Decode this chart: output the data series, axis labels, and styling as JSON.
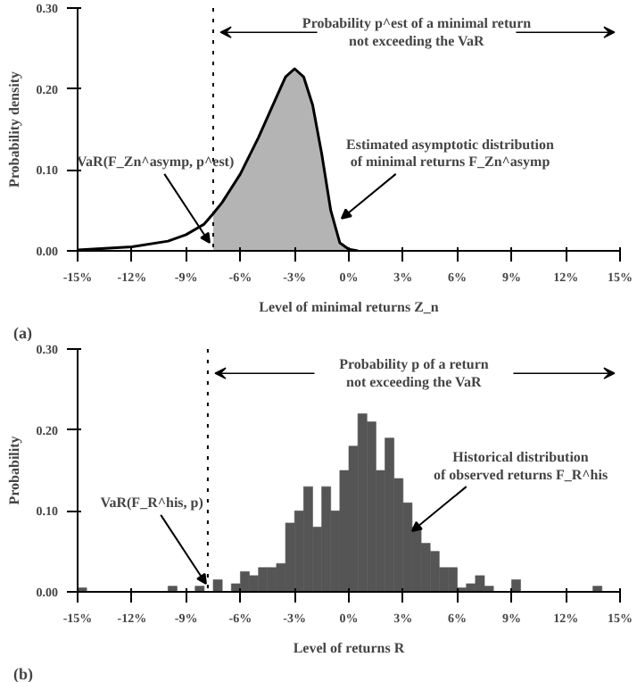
{
  "chart_data": [
    {
      "type": "line",
      "xlabel": "Level of minimal returns Z_n",
      "ylabel": "Probability density",
      "series": [
        {
          "type": "line",
          "color": "#000000",
          "x": [
            -15,
            -12,
            -10,
            -9,
            -8,
            -7.5,
            -7,
            -6,
            -5,
            -4,
            -3.5,
            -3,
            -2.5,
            -2,
            -1.5,
            -1,
            -0.5,
            0,
            0.5
          ],
          "values": [
            0.001,
            0.005,
            0.012,
            0.02,
            0.033,
            0.046,
            0.06,
            0.095,
            0.14,
            0.19,
            0.215,
            0.225,
            0.215,
            0.18,
            0.12,
            0.05,
            0.01,
            0.002,
            0
          ]
        },
        {
          "type": "area",
          "color": "#b4b4b4",
          "x": [
            -7.5,
            -7,
            -6,
            -5,
            -4,
            -3.5,
            -3,
            -2.5,
            -2,
            -1.5,
            -1,
            -0.5,
            0
          ],
          "values": [
            0.046,
            0.06,
            0.095,
            0.14,
            0.19,
            0.215,
            0.225,
            0.215,
            0.18,
            0.12,
            0.05,
            0.01,
            0.002
          ]
        }
      ],
      "xlim": [
        -15,
        15
      ],
      "ylim": [
        0,
        0.3
      ],
      "xticks": [
        {
          "value": -15,
          "label": "-15%"
        },
        {
          "value": -12,
          "label": "-12%"
        },
        {
          "value": -9,
          "label": "-9%"
        },
        {
          "value": -6,
          "label": "-6%"
        },
        {
          "value": -3,
          "label": "-3%"
        },
        {
          "value": 0,
          "label": "0%"
        },
        {
          "value": 3,
          "label": "3%"
        },
        {
          "value": 6,
          "label": "6%"
        },
        {
          "value": 9,
          "label": "9%"
        },
        {
          "value": 12,
          "label": "12%"
        },
        {
          "value": 15,
          "label": "15%"
        }
      ],
      "yticks": [
        {
          "value": 0,
          "label": "0.00"
        },
        {
          "value": 0.1,
          "label": "0.10"
        },
        {
          "value": 0.2,
          "label": "0.20"
        },
        {
          "value": 0.3,
          "label": "0.30"
        }
      ],
      "ref_lines": [
        {
          "axis": "x",
          "value": -7.5,
          "line_style": "dotted",
          "color": "#000000"
        }
      ],
      "annotations": [
        "(a)",
        "Probability p^est of a minimal return\nnot exceeding the VaR",
        {
          "text": "VaR(F_Zn^asymp, p^est)",
          "x": -7.7,
          "y": 0.01
        },
        {
          "text": "Estimated asymptotic distribution\nof minimal returns F_Zn^asymp",
          "x": -0.4,
          "y": 0.04
        }
      ],
      "grid": false
    },
    {
      "type": "histogram",
      "xlabel": "Level of returns R",
      "ylabel": "Probability",
      "color": "#555555",
      "bins": [
        -15,
        -14.5,
        -14,
        -13.5,
        -13,
        -12.5,
        -12,
        -11.5,
        -11,
        -10.5,
        -10,
        -9.5,
        -9,
        -8.5,
        -8,
        -7.5,
        -7,
        -6.5,
        -6,
        -5.5,
        -5,
        -4.5,
        -4,
        -3.5,
        -3,
        -2.5,
        -2,
        -1.5,
        -1,
        -0.5,
        0,
        0.5,
        1,
        1.5,
        2,
        2.5,
        3,
        3.5,
        4,
        4.5,
        5,
        5.5,
        6,
        6.5,
        7,
        7.5,
        8,
        8.5,
        9,
        9.5,
        10,
        10.5,
        11,
        11.5,
        12,
        12.5,
        13,
        13.5,
        14,
        14.5,
        15
      ],
      "values": [
        0.005,
        0,
        0,
        0,
        0,
        0,
        0,
        0,
        0,
        0,
        0.007,
        0,
        0,
        0.007,
        0,
        0.015,
        0,
        0.01,
        0.025,
        0.02,
        0.03,
        0.03,
        0.035,
        0.085,
        0.1,
        0.13,
        0.08,
        0.13,
        0.1,
        0.15,
        0.18,
        0.22,
        0.21,
        0.15,
        0.19,
        0.14,
        0.11,
        0.08,
        0.06,
        0.05,
        0.03,
        0.03,
        0.005,
        0.01,
        0.02,
        0.007,
        0,
        0,
        0.015,
        0,
        0,
        0,
        0,
        0,
        0,
        0,
        0,
        0.007,
        0,
        0
      ],
      "xlim": [
        -15,
        15
      ],
      "ylim": [
        0,
        0.3
      ],
      "xticks": [
        {
          "value": -15,
          "label": "-15%"
        },
        {
          "value": -12,
          "label": "-12%"
        },
        {
          "value": -9,
          "label": "-9%"
        },
        {
          "value": -6,
          "label": "-6%"
        },
        {
          "value": -3,
          "label": "-3%"
        },
        {
          "value": 0,
          "label": "0%"
        },
        {
          "value": 3,
          "label": "3%"
        },
        {
          "value": 6,
          "label": "6%"
        },
        {
          "value": 9,
          "label": "9%"
        },
        {
          "value": 12,
          "label": "12%"
        },
        {
          "value": 15,
          "label": "15%"
        }
      ],
      "yticks": [
        {
          "value": 0,
          "label": "0.00"
        },
        {
          "value": 0.1,
          "label": "0.10"
        },
        {
          "value": 0.2,
          "label": "0.20"
        },
        {
          "value": 0.3,
          "label": "0.30"
        }
      ],
      "ref_lines": [
        {
          "axis": "x",
          "value": -7.8,
          "line_style": "dotted",
          "color": "#000000"
        }
      ],
      "annotations": [
        "(b)",
        "Probability p of a return\nnot exceeding the VaR",
        {
          "text": "VaR(F_R^his, p)",
          "x": -7.9,
          "y": 0.01
        },
        {
          "text": "Historical distribution\nof observed returns F_R^his",
          "x": 3.5,
          "y": 0.075
        }
      ],
      "grid": false
    }
  ]
}
